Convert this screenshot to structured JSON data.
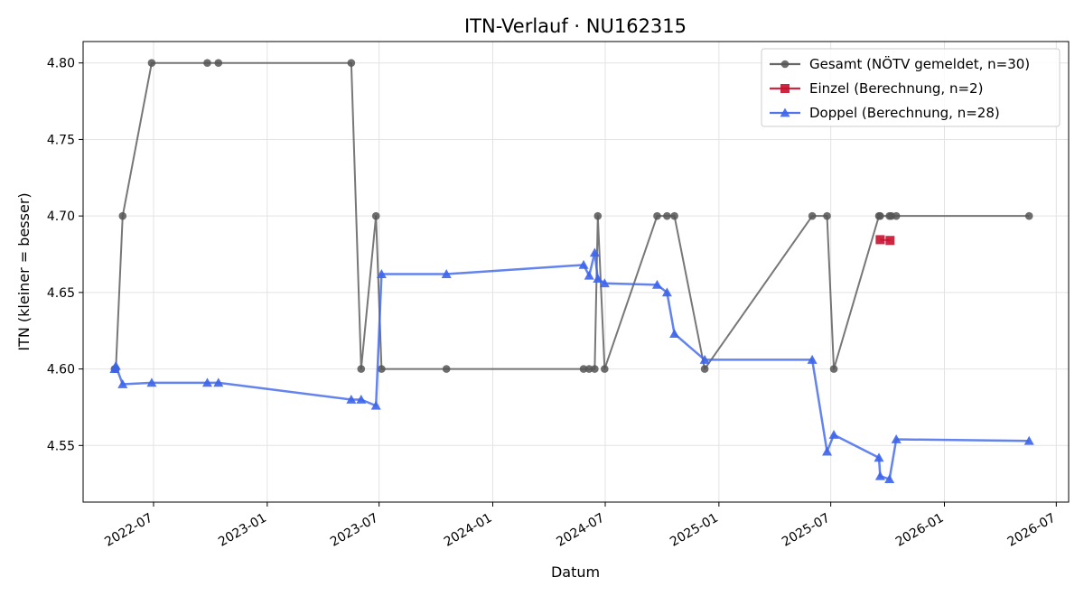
{
  "chart_data": {
    "type": "line",
    "title": "ITN-Verlauf · NU162315",
    "xlabel": "Datum",
    "ylabel": "ITN  (kleiner = besser)",
    "x_axis_type": "date",
    "xlim": [
      "2022-03-09",
      "2026-07-21"
    ],
    "ylim": [
      4.513,
      4.814
    ],
    "x_ticks": [
      "2022-07",
      "2023-01",
      "2023-07",
      "2024-01",
      "2024-07",
      "2025-01",
      "2025-07",
      "2026-01",
      "2026-07"
    ],
    "y_ticks": [
      4.55,
      4.6,
      4.65,
      4.7,
      4.75,
      4.8
    ],
    "y_tick_labels": [
      "4.55",
      "4.60",
      "4.65",
      "4.70",
      "4.75",
      "4.80"
    ],
    "grid": true,
    "legend_position": "top-right",
    "series": [
      {
        "name": "Gesamt (NÖTV gemeldet, n=30)",
        "color": "#555555",
        "marker": "circle",
        "points": [
          [
            "2022-04-29",
            4.6
          ],
          [
            "2022-05-01",
            4.6
          ],
          [
            "2022-05-12",
            4.7
          ],
          [
            "2022-06-28",
            4.8
          ],
          [
            "2022-09-26",
            4.8
          ],
          [
            "2022-10-14",
            4.8
          ],
          [
            "2023-05-17",
            4.8
          ],
          [
            "2023-06-02",
            4.6
          ],
          [
            "2023-06-26",
            4.7
          ],
          [
            "2023-07-05",
            4.6
          ],
          [
            "2023-10-18",
            4.6
          ],
          [
            "2024-05-27",
            4.6
          ],
          [
            "2024-06-05",
            4.6
          ],
          [
            "2024-06-14",
            4.6
          ],
          [
            "2024-06-19",
            4.7
          ],
          [
            "2024-06-30",
            4.6
          ],
          [
            "2024-09-23",
            4.7
          ],
          [
            "2024-10-09",
            4.7
          ],
          [
            "2024-10-21",
            4.7
          ],
          [
            "2024-12-09",
            4.6
          ],
          [
            "2025-06-01",
            4.7
          ],
          [
            "2025-06-25",
            4.7
          ],
          [
            "2025-07-06",
            4.6
          ],
          [
            "2025-09-17",
            4.7
          ],
          [
            "2025-09-19",
            4.7
          ],
          [
            "2025-10-04",
            4.7
          ],
          [
            "2025-10-07",
            4.7
          ],
          [
            "2025-10-15",
            4.7
          ],
          [
            "2026-05-18",
            4.7
          ]
        ]
      },
      {
        "name": "Einzel (Berechnung, n=2)",
        "color": "#c8102e",
        "marker": "square",
        "points": [
          [
            "2025-09-19",
            4.6845
          ],
          [
            "2025-10-05",
            4.684
          ]
        ]
      },
      {
        "name": "Doppel (Berechnung, n=28)",
        "color": "#3c64eb",
        "marker": "triangle",
        "points": [
          [
            "2022-04-29",
            4.6
          ],
          [
            "2022-05-01",
            4.602
          ],
          [
            "2022-05-12",
            4.59
          ],
          [
            "2022-06-28",
            4.591
          ],
          [
            "2022-09-26",
            4.591
          ],
          [
            "2022-10-14",
            4.591
          ],
          [
            "2023-05-17",
            4.58
          ],
          [
            "2023-06-02",
            4.58
          ],
          [
            "2023-06-26",
            4.576
          ],
          [
            "2023-07-05",
            4.662
          ],
          [
            "2023-10-18",
            4.662
          ],
          [
            "2024-05-27",
            4.668
          ],
          [
            "2024-06-05",
            4.661
          ],
          [
            "2024-06-14",
            4.676
          ],
          [
            "2024-06-19",
            4.659
          ],
          [
            "2024-06-30",
            4.656
          ],
          [
            "2024-09-23",
            4.655
          ],
          [
            "2024-10-09",
            4.65
          ],
          [
            "2024-10-21",
            4.623
          ],
          [
            "2024-12-09",
            4.606
          ],
          [
            "2025-06-01",
            4.606
          ],
          [
            "2025-06-25",
            4.546
          ],
          [
            "2025-07-06",
            4.557
          ],
          [
            "2025-09-17",
            4.542
          ],
          [
            "2025-09-19",
            4.53
          ],
          [
            "2025-10-04",
            4.528
          ],
          [
            "2025-10-15",
            4.554
          ],
          [
            "2026-05-18",
            4.553
          ]
        ]
      }
    ]
  }
}
